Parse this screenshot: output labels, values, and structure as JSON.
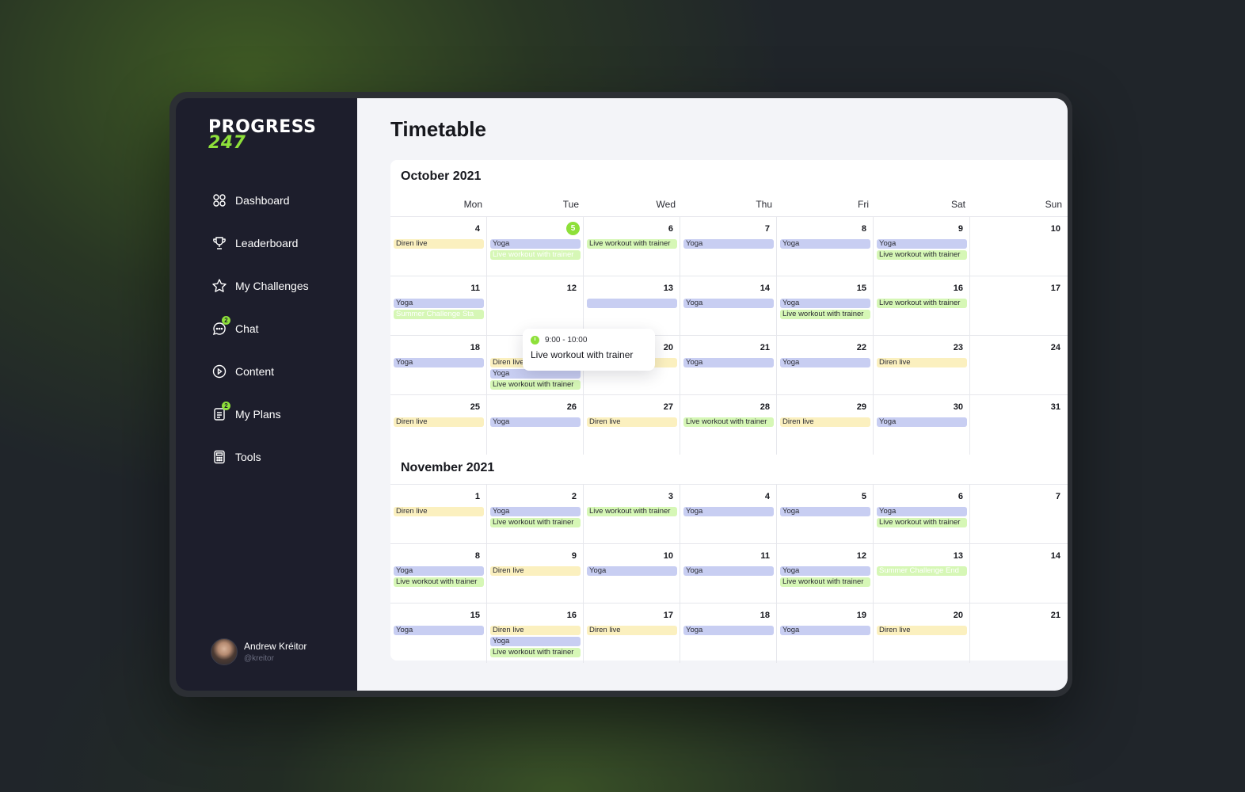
{
  "brand": {
    "line1": "PROGRESS",
    "line2": "247"
  },
  "nav": [
    {
      "label": "Dashboard",
      "icon": "dashboard-icon"
    },
    {
      "label": "Leaderboard",
      "icon": "trophy-icon"
    },
    {
      "label": "My Challenges",
      "icon": "star-icon"
    },
    {
      "label": "Chat",
      "icon": "chat-icon",
      "badge": "2"
    },
    {
      "label": "Content",
      "icon": "play-circle-icon"
    },
    {
      "label": "My Plans",
      "icon": "plans-icon",
      "badge": "2"
    },
    {
      "label": "Tools",
      "icon": "calculator-icon"
    }
  ],
  "user": {
    "name": "Andrew Kréitor",
    "handle": "@kreitor"
  },
  "page": {
    "title": "Timetable"
  },
  "weekdays": [
    "Mon",
    "Tue",
    "Wed",
    "Thu",
    "Fri",
    "Sat",
    "Sun"
  ],
  "colors": {
    "accent": "#8ee03a",
    "yoga": "#c8cef2",
    "diren": "#fbf0bf",
    "live": "#d6f7b6",
    "sidebar": "#1d1e2c"
  },
  "tooltip": {
    "time": "9:00 - 10:00",
    "title": "Live workout with trainer"
  },
  "months": [
    {
      "title": "October 2021",
      "weeks": [
        [
          {
            "day": "4",
            "events": [
              {
                "t": "Diren live",
                "k": "diren"
              }
            ]
          },
          {
            "day": "5",
            "today": true,
            "events": [
              {
                "t": "Yoga",
                "k": "yoga"
              },
              {
                "t": "Live workout with trainer",
                "k": "faded"
              }
            ]
          },
          {
            "day": "6",
            "events": [
              {
                "t": "Live workout with trainer",
                "k": "live"
              }
            ]
          },
          {
            "day": "7",
            "events": [
              {
                "t": "Yoga",
                "k": "yoga"
              }
            ]
          },
          {
            "day": "8",
            "events": [
              {
                "t": "Yoga",
                "k": "yoga"
              }
            ]
          },
          {
            "day": "9",
            "events": [
              {
                "t": "Yoga",
                "k": "yoga"
              },
              {
                "t": "Live workout with trainer",
                "k": "live"
              }
            ]
          },
          {
            "day": "10",
            "events": []
          }
        ],
        [
          {
            "day": "11",
            "events": [
              {
                "t": "Yoga",
                "k": "yoga"
              },
              {
                "t": "Summer Challenge Sta",
                "k": "faded"
              }
            ]
          },
          {
            "day": "12",
            "events": []
          },
          {
            "day": "13",
            "events": [
              {
                "t": "",
                "k": "yoga"
              }
            ]
          },
          {
            "day": "14",
            "events": [
              {
                "t": "Yoga",
                "k": "yoga"
              }
            ]
          },
          {
            "day": "15",
            "events": [
              {
                "t": "Yoga",
                "k": "yoga"
              },
              {
                "t": "Live workout with trainer",
                "k": "live"
              }
            ]
          },
          {
            "day": "16",
            "events": [
              {
                "t": "Live workout with trainer",
                "k": "live"
              }
            ]
          },
          {
            "day": "17",
            "events": []
          }
        ],
        [
          {
            "day": "18",
            "events": [
              {
                "t": "Yoga",
                "k": "yoga"
              }
            ]
          },
          {
            "day": "19",
            "events": [
              {
                "t": "Diren live",
                "k": "diren"
              },
              {
                "t": "Yoga",
                "k": "yoga"
              },
              {
                "t": "Live workout with trainer",
                "k": "live"
              }
            ]
          },
          {
            "day": "20",
            "events": [
              {
                "t": "Diren live",
                "k": "diren"
              }
            ]
          },
          {
            "day": "21",
            "events": [
              {
                "t": "Yoga",
                "k": "yoga"
              }
            ]
          },
          {
            "day": "22",
            "events": [
              {
                "t": "Yoga",
                "k": "yoga"
              }
            ]
          },
          {
            "day": "23",
            "events": [
              {
                "t": "Diren live",
                "k": "diren"
              }
            ]
          },
          {
            "day": "24",
            "events": []
          }
        ],
        [
          {
            "day": "25",
            "events": [
              {
                "t": "Diren live",
                "k": "diren"
              }
            ]
          },
          {
            "day": "26",
            "events": [
              {
                "t": "Yoga",
                "k": "yoga"
              }
            ]
          },
          {
            "day": "27",
            "events": [
              {
                "t": "Diren live",
                "k": "diren"
              }
            ]
          },
          {
            "day": "28",
            "events": [
              {
                "t": "Live workout with trainer",
                "k": "live"
              }
            ]
          },
          {
            "day": "29",
            "events": [
              {
                "t": "Diren live",
                "k": "diren"
              }
            ]
          },
          {
            "day": "30",
            "events": [
              {
                "t": "Yoga",
                "k": "yoga"
              }
            ]
          },
          {
            "day": "31",
            "events": []
          }
        ]
      ]
    },
    {
      "title": "November 2021",
      "weeks": [
        [
          {
            "day": "1",
            "events": [
              {
                "t": "Diren live",
                "k": "diren"
              }
            ]
          },
          {
            "day": "2",
            "events": [
              {
                "t": "Yoga",
                "k": "yoga"
              },
              {
                "t": "Live workout with trainer",
                "k": "live"
              }
            ]
          },
          {
            "day": "3",
            "events": [
              {
                "t": "Live workout with trainer",
                "k": "live"
              }
            ]
          },
          {
            "day": "4",
            "events": [
              {
                "t": "Yoga",
                "k": "yoga"
              }
            ]
          },
          {
            "day": "5",
            "events": [
              {
                "t": "Yoga",
                "k": "yoga"
              }
            ]
          },
          {
            "day": "6",
            "events": [
              {
                "t": "Yoga",
                "k": "yoga"
              },
              {
                "t": "Live workout with trainer",
                "k": "live"
              }
            ]
          },
          {
            "day": "7",
            "events": []
          }
        ],
        [
          {
            "day": "8",
            "events": [
              {
                "t": "Yoga",
                "k": "yoga"
              },
              {
                "t": "Live workout with trainer",
                "k": "live"
              }
            ]
          },
          {
            "day": "9",
            "events": [
              {
                "t": "Diren live",
                "k": "diren"
              }
            ]
          },
          {
            "day": "10",
            "events": [
              {
                "t": "Yoga",
                "k": "yoga"
              }
            ]
          },
          {
            "day": "11",
            "events": [
              {
                "t": "Yoga",
                "k": "yoga"
              }
            ]
          },
          {
            "day": "12",
            "events": [
              {
                "t": "Yoga",
                "k": "yoga"
              },
              {
                "t": "Live workout with trainer",
                "k": "live"
              }
            ]
          },
          {
            "day": "13",
            "events": [
              {
                "t": "Summer Challenge End",
                "k": "faded"
              }
            ]
          },
          {
            "day": "14",
            "events": []
          }
        ],
        [
          {
            "day": "15",
            "events": [
              {
                "t": "Yoga",
                "k": "yoga"
              }
            ]
          },
          {
            "day": "16",
            "events": [
              {
                "t": "Diren live",
                "k": "diren"
              },
              {
                "t": "Yoga",
                "k": "yoga"
              },
              {
                "t": "Live workout with trainer",
                "k": "live"
              }
            ]
          },
          {
            "day": "17",
            "events": [
              {
                "t": "Diren live",
                "k": "diren"
              }
            ]
          },
          {
            "day": "18",
            "events": [
              {
                "t": "Yoga",
                "k": "yoga"
              }
            ]
          },
          {
            "day": "19",
            "events": [
              {
                "t": "Yoga",
                "k": "yoga"
              }
            ]
          },
          {
            "day": "20",
            "events": [
              {
                "t": "Diren live",
                "k": "diren"
              }
            ]
          },
          {
            "day": "21",
            "events": []
          }
        ]
      ]
    }
  ]
}
